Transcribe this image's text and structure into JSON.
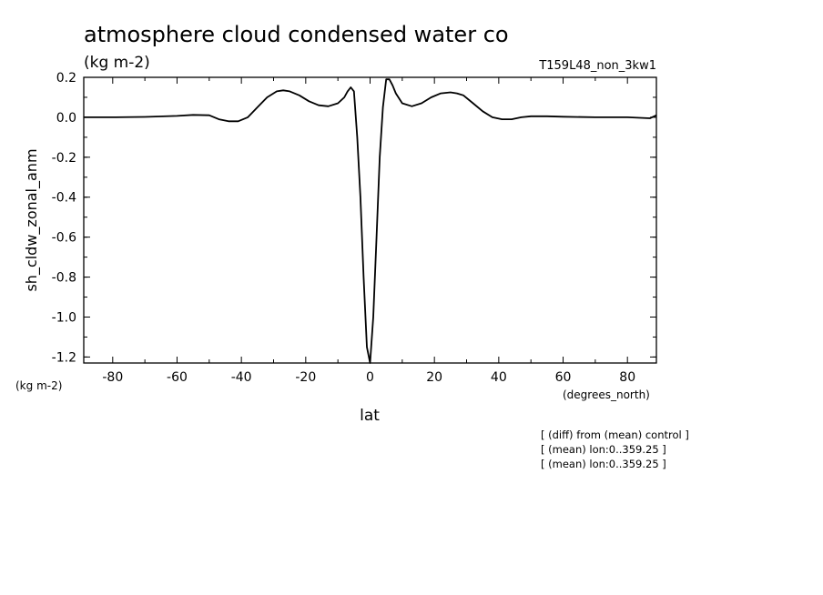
{
  "chart_data": {
    "type": "line",
    "title": "atmosphere cloud condensed water co",
    "subtitle": "(kg m-2)",
    "run_label": "T159L48_non_3kw1",
    "ylabel": "sh_cldw_zonal_anm",
    "yunits": "(kg m-2)",
    "xlabel": "lat",
    "xunits": "(degrees_north)",
    "xlim": [
      -89,
      89
    ],
    "ylim": [
      -1.23,
      0.2
    ],
    "xticks": [
      -80,
      -60,
      -40,
      -20,
      0,
      20,
      40,
      60,
      80
    ],
    "xtick_labels": [
      "-80",
      "-60",
      "-40",
      "-20",
      "0",
      "20",
      "40",
      "60",
      "80"
    ],
    "yticks": [
      0.2,
      0.0,
      -0.2,
      -0.4,
      -0.6,
      -0.8,
      -1.0,
      -1.2
    ],
    "ytick_labels": [
      "0.2",
      "0.0",
      "-0.2",
      "-0.4",
      "-0.6",
      "-0.8",
      "-1.0",
      "-1.2"
    ],
    "notes": [
      "[ (diff) from (mean) control ]",
      "[ (mean) lon:0..359.25 ]",
      "[ (mean) lon:0..359.25 ]"
    ],
    "grid": false,
    "series": [
      {
        "x": [
          -89,
          -80,
          -70,
          -60,
          -55,
          -50,
          -47,
          -44,
          -41,
          -38,
          -35,
          -32,
          -29,
          -27,
          -25,
          -22,
          -19,
          -16,
          -13,
          -10,
          -8,
          -7,
          -6,
          -5,
          -4,
          -3,
          -2,
          -1,
          0,
          1,
          2,
          3,
          4,
          5,
          6,
          7,
          8,
          10,
          13,
          16,
          19,
          22,
          25,
          27,
          29,
          32,
          35,
          38,
          41,
          44,
          47,
          50,
          55,
          60,
          70,
          80,
          87,
          89
        ],
        "y": [
          0.0,
          0.0,
          0.002,
          0.007,
          0.012,
          0.01,
          -0.01,
          -0.02,
          -0.02,
          0.0,
          0.05,
          0.1,
          0.13,
          0.135,
          0.13,
          0.11,
          0.08,
          0.06,
          0.055,
          0.07,
          0.1,
          0.13,
          0.15,
          0.13,
          -0.1,
          -0.4,
          -0.8,
          -1.15,
          -1.23,
          -1.0,
          -0.6,
          -0.2,
          0.05,
          0.19,
          0.19,
          0.16,
          0.12,
          0.07,
          0.055,
          0.07,
          0.1,
          0.12,
          0.125,
          0.12,
          0.11,
          0.07,
          0.03,
          0.0,
          -0.01,
          -0.01,
          0.0,
          0.005,
          0.005,
          0.003,
          0.0,
          0.0,
          -0.005,
          0.01
        ]
      }
    ]
  }
}
